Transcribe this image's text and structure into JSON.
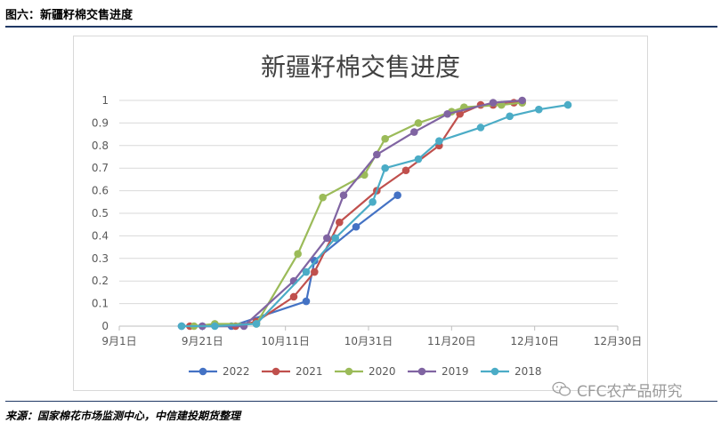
{
  "figure": {
    "title": "图六：新疆籽棉交售进度",
    "source": "来源：国家棉花市场监测中心，中信建投期货整理",
    "watermark": "CFC农产品研究",
    "watermark_icon": "wechat-icon"
  },
  "colors": {
    "rule": "#1f3864",
    "series": [
      "#4472c4",
      "#c0504d",
      "#9bbb59",
      "#8064a2",
      "#4bacc6"
    ]
  },
  "chart_data": {
    "type": "line",
    "title": "新疆籽棉交售进度",
    "xlabel": "",
    "ylabel": "",
    "x_tick_labels": [
      "9月1日",
      "9月21日",
      "10月11日",
      "10月31日",
      "11月20日",
      "12月10日",
      "12月30日"
    ],
    "xlim_days": [
      0,
      120
    ],
    "x_tick_days": [
      0,
      20,
      40,
      60,
      80,
      100,
      120
    ],
    "ylim": [
      0,
      1
    ],
    "y_ticks": [
      "0",
      "0.1",
      "0.2",
      "0.3",
      "0.4",
      "0.5",
      "0.6",
      "0.7",
      "0.8",
      "0.9",
      "1"
    ],
    "grid": "horizontal",
    "legend_position": "bottom",
    "series": [
      {
        "name": "2022",
        "points": [
          [
            15,
            0
          ],
          [
            20,
            0
          ],
          [
            27,
            0
          ],
          [
            45,
            0.11
          ],
          [
            47,
            0.29
          ],
          [
            57,
            0.44
          ],
          [
            67,
            0.58
          ]
        ]
      },
      {
        "name": "2021",
        "points": [
          [
            17,
            0
          ],
          [
            28,
            0
          ],
          [
            33,
            0.02
          ],
          [
            42,
            0.13
          ],
          [
            47,
            0.24
          ],
          [
            53,
            0.46
          ],
          [
            62,
            0.6
          ],
          [
            69,
            0.69
          ],
          [
            77,
            0.8
          ],
          [
            82,
            0.94
          ],
          [
            87,
            0.98
          ],
          [
            90,
            0.98
          ],
          [
            95,
            0.99
          ],
          [
            97,
            0.99
          ]
        ]
      },
      {
        "name": "2020",
        "points": [
          [
            18,
            0
          ],
          [
            23,
            0.01
          ],
          [
            33,
            0.01
          ],
          [
            43,
            0.32
          ],
          [
            49,
            0.57
          ],
          [
            59,
            0.67
          ],
          [
            64,
            0.83
          ],
          [
            72,
            0.9
          ],
          [
            80,
            0.95
          ],
          [
            83,
            0.97
          ],
          [
            92,
            0.98
          ],
          [
            97,
            0.99
          ]
        ]
      },
      {
        "name": "2019",
        "points": [
          [
            20,
            0
          ],
          [
            30,
            0
          ],
          [
            42,
            0.2
          ],
          [
            50,
            0.39
          ],
          [
            54,
            0.58
          ],
          [
            62,
            0.76
          ],
          [
            71,
            0.86
          ],
          [
            79,
            0.94
          ],
          [
            90,
            0.99
          ],
          [
            97,
            1.0
          ]
        ]
      },
      {
        "name": "2018",
        "points": [
          [
            15,
            0
          ],
          [
            23,
            0
          ],
          [
            33,
            0.01
          ],
          [
            45,
            0.24
          ],
          [
            52,
            0.39
          ],
          [
            61,
            0.55
          ],
          [
            64,
            0.7
          ],
          [
            72,
            0.74
          ],
          [
            77,
            0.82
          ],
          [
            87,
            0.88
          ],
          [
            94,
            0.93
          ],
          [
            101,
            0.96
          ],
          [
            108,
            0.98
          ]
        ]
      }
    ]
  }
}
